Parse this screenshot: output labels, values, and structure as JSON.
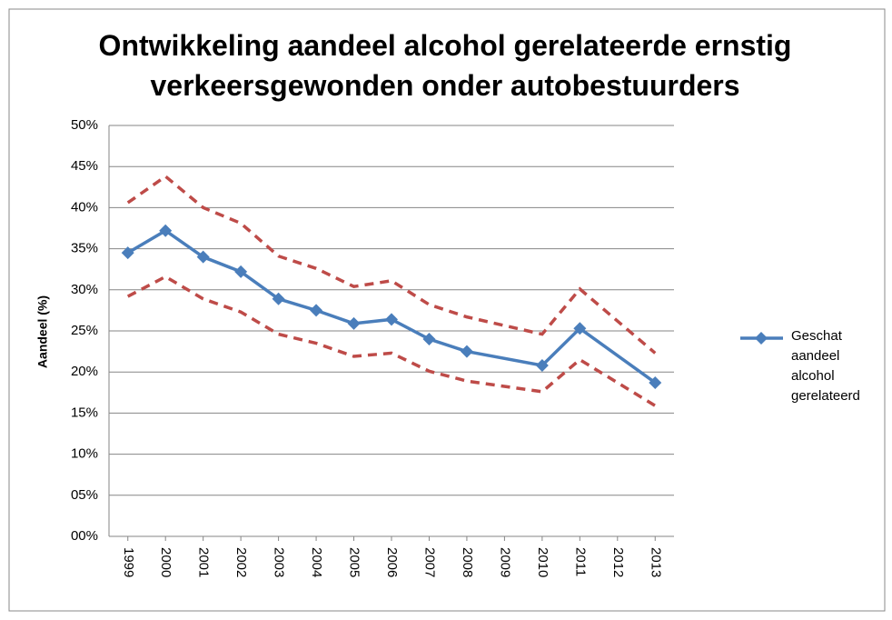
{
  "chart_data": {
    "type": "line",
    "title": "Ontwikkeling aandeel alcohol gerelateerde ernstig\nverkeersgewonden onder autobestuurders",
    "y_label": "Aandeel (%)",
    "xlim": [
      1998.5,
      2013.5
    ],
    "xticks": [
      1999,
      2000,
      2001,
      2002,
      2003,
      2004,
      2005,
      2006,
      2007,
      2008,
      2009,
      2010,
      2011,
      2012,
      2013
    ],
    "ylim": [
      0,
      50
    ],
    "yticks": [
      {
        "value": 0,
        "label": "00%"
      },
      {
        "value": 5,
        "label": "05%"
      },
      {
        "value": 10,
        "label": "10%"
      },
      {
        "value": 15,
        "label": "15%"
      },
      {
        "value": 20,
        "label": "20%"
      },
      {
        "value": 25,
        "label": "25%"
      },
      {
        "value": 30,
        "label": "30%"
      },
      {
        "value": 35,
        "label": "35%"
      },
      {
        "value": 40,
        "label": "40%"
      },
      {
        "value": 45,
        "label": "45%"
      },
      {
        "value": 50,
        "label": "50%"
      }
    ],
    "grid": true,
    "legend": "right",
    "series": [
      {
        "name": "Geschat aandeel alcohol gerelateerd",
        "color": "#4a7ebb",
        "marker": "diamond",
        "x": [
          1999,
          2000,
          2001,
          2002,
          2003,
          2004,
          2005,
          2006,
          2007,
          2008,
          2010,
          2011,
          2013
        ],
        "values": [
          34.5,
          37.2,
          34.0,
          32.2,
          28.9,
          27.5,
          25.9,
          26.4,
          24.0,
          22.5,
          20.8,
          25.3,
          18.7
        ]
      },
      {
        "color": "#be4b48",
        "dashed": true,
        "x": [
          1999,
          2000,
          2001,
          2002,
          2003,
          2004,
          2005,
          2006,
          2007,
          2008,
          2010,
          2011,
          2013
        ],
        "values": [
          40.6,
          43.8,
          40.0,
          38.1,
          34.1,
          32.6,
          30.4,
          31.1,
          28.2,
          26.7,
          24.6,
          30.1,
          22.3
        ]
      },
      {
        "color": "#be4b48",
        "dashed": true,
        "x": [
          1999,
          2000,
          2001,
          2002,
          2003,
          2004,
          2005,
          2006,
          2007,
          2008,
          2010,
          2011,
          2013
        ],
        "values": [
          29.2,
          31.6,
          28.9,
          27.3,
          24.6,
          23.5,
          21.9,
          22.3,
          20.1,
          18.9,
          17.6,
          21.5,
          15.9
        ]
      }
    ]
  }
}
